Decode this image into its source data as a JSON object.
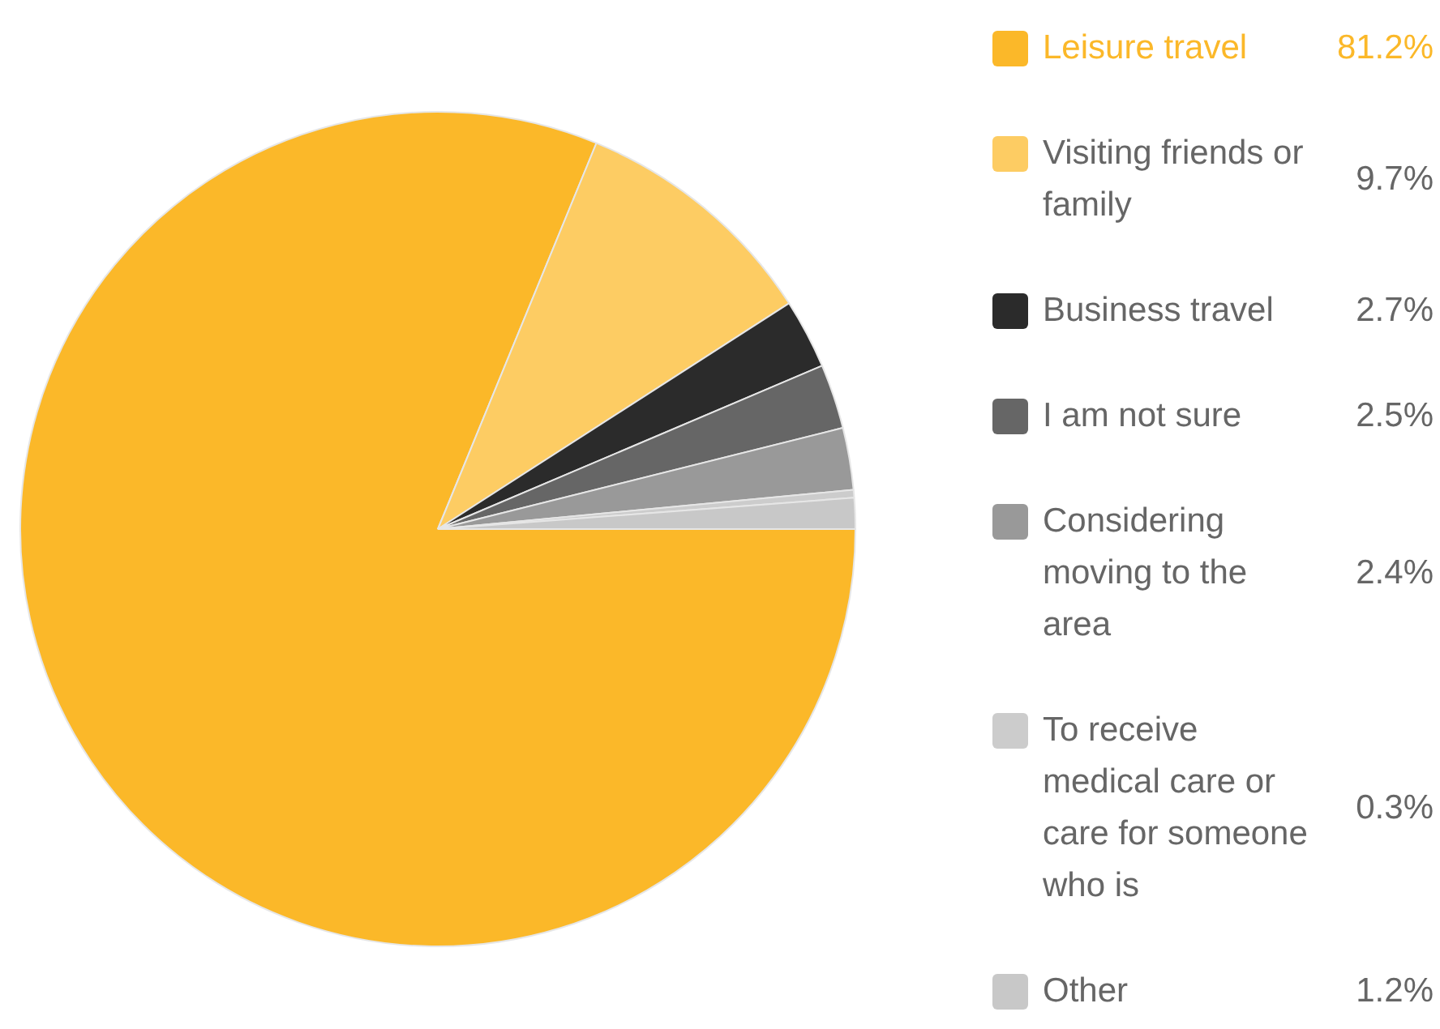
{
  "chart_data": {
    "type": "pie",
    "categories": [
      "Leisure travel",
      "Visiting friends or family",
      "Business travel",
      "I am not sure",
      "Considering moving to the area",
      "To receive medical care or care for someone who is",
      "Other"
    ],
    "values": [
      81.2,
      9.7,
      2.7,
      2.5,
      2.4,
      0.3,
      1.2
    ],
    "colors": [
      "#fbb829",
      "#fdcc63",
      "#2b2b2b",
      "#666666",
      "#999999",
      "#cccccc",
      "#c8c8c8"
    ],
    "value_labels": [
      "81.2%",
      "9.7%",
      "2.7%",
      "2.5%",
      "2.4%",
      "0.3%",
      "1.2%"
    ],
    "legend": "right"
  }
}
